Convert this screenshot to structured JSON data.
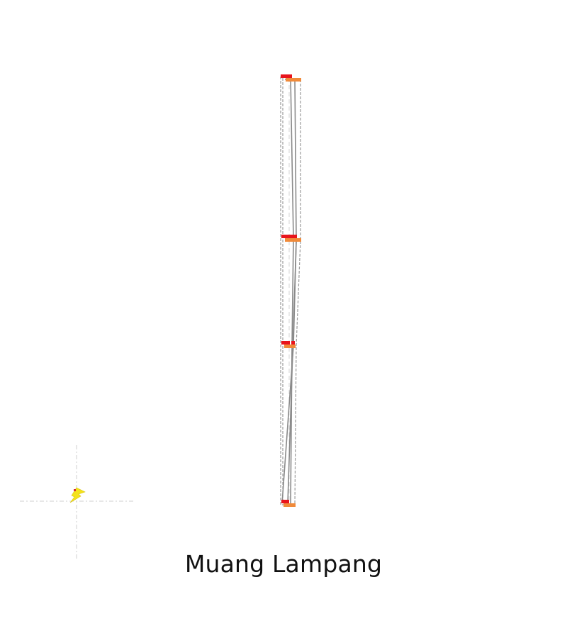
{
  "map": {
    "place_name": "Muang Lampang",
    "colors": {
      "route_line": "#8a8a8a",
      "route_dashed": "#9a9a9a",
      "guide_dashed": "#d4d4d4",
      "stop_red": "#e8141c",
      "stop_orange": "#f08a3a",
      "marker_yellow": "#f4e21a",
      "marker_red": "#d23030",
      "crosshair": "#cfcfcf"
    },
    "icons": {
      "location_marker": "lightning-bolt-icon"
    }
  }
}
